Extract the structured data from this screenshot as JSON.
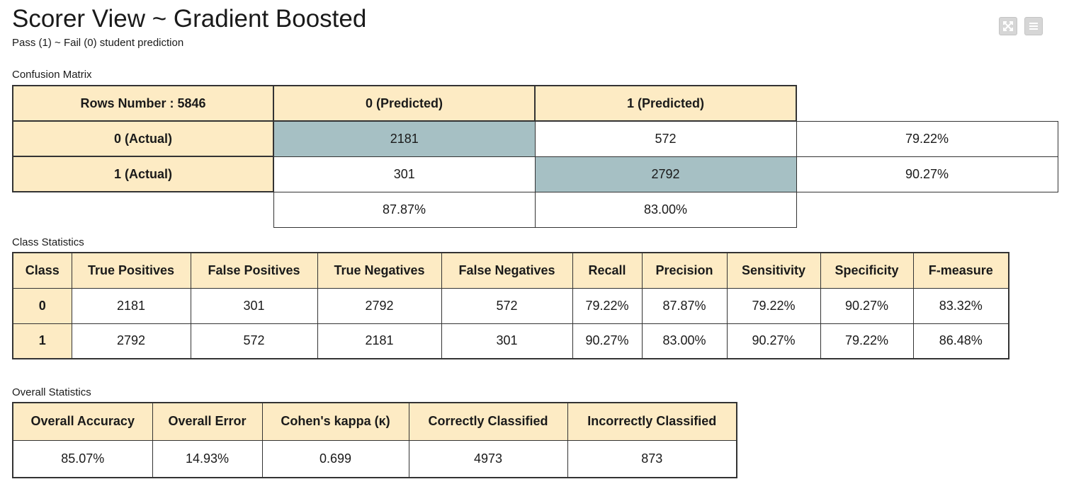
{
  "header": {
    "title": "Scorer View ~ Gradient Boosted",
    "subtitle": "Pass (1) ~ Fail (0) student prediction",
    "buttons": [
      {
        "icon": "expand-icon"
      },
      {
        "icon": "menu-icon"
      }
    ]
  },
  "confusion_matrix": {
    "label": "Confusion Matrix",
    "corner": "Rows Number : 5846",
    "col_headers": [
      "0 (Predicted)",
      "1 (Predicted)"
    ],
    "rows": [
      {
        "header": "0 (Actual)",
        "cells": [
          "2181",
          "572"
        ],
        "rate": "79.22%"
      },
      {
        "header": "1 (Actual)",
        "cells": [
          "301",
          "2792"
        ],
        "rate": "90.27%"
      }
    ],
    "col_rates": [
      "87.87%",
      "83.00%"
    ],
    "diagonal_color": "#a6c0c4",
    "header_color": "#fdebc4"
  },
  "class_statistics": {
    "label": "Class Statistics",
    "headers": [
      "Class",
      "True Positives",
      "False Positives",
      "True Negatives",
      "False Negatives",
      "Recall",
      "Precision",
      "Sensitivity",
      "Specificity",
      "F-measure"
    ],
    "rows": [
      [
        "0",
        "2181",
        "301",
        "2792",
        "572",
        "79.22%",
        "87.87%",
        "79.22%",
        "90.27%",
        "83.32%"
      ],
      [
        "1",
        "2792",
        "572",
        "2181",
        "301",
        "90.27%",
        "83.00%",
        "90.27%",
        "79.22%",
        "86.48%"
      ]
    ]
  },
  "overall_statistics": {
    "label": "Overall Statistics",
    "headers": [
      "Overall Accuracy",
      "Overall Error",
      "Cohen's kappa (κ)",
      "Correctly Classified",
      "Incorrectly Classified"
    ],
    "values": [
      "85.07%",
      "14.93%",
      "0.699",
      "4973",
      "873"
    ]
  }
}
